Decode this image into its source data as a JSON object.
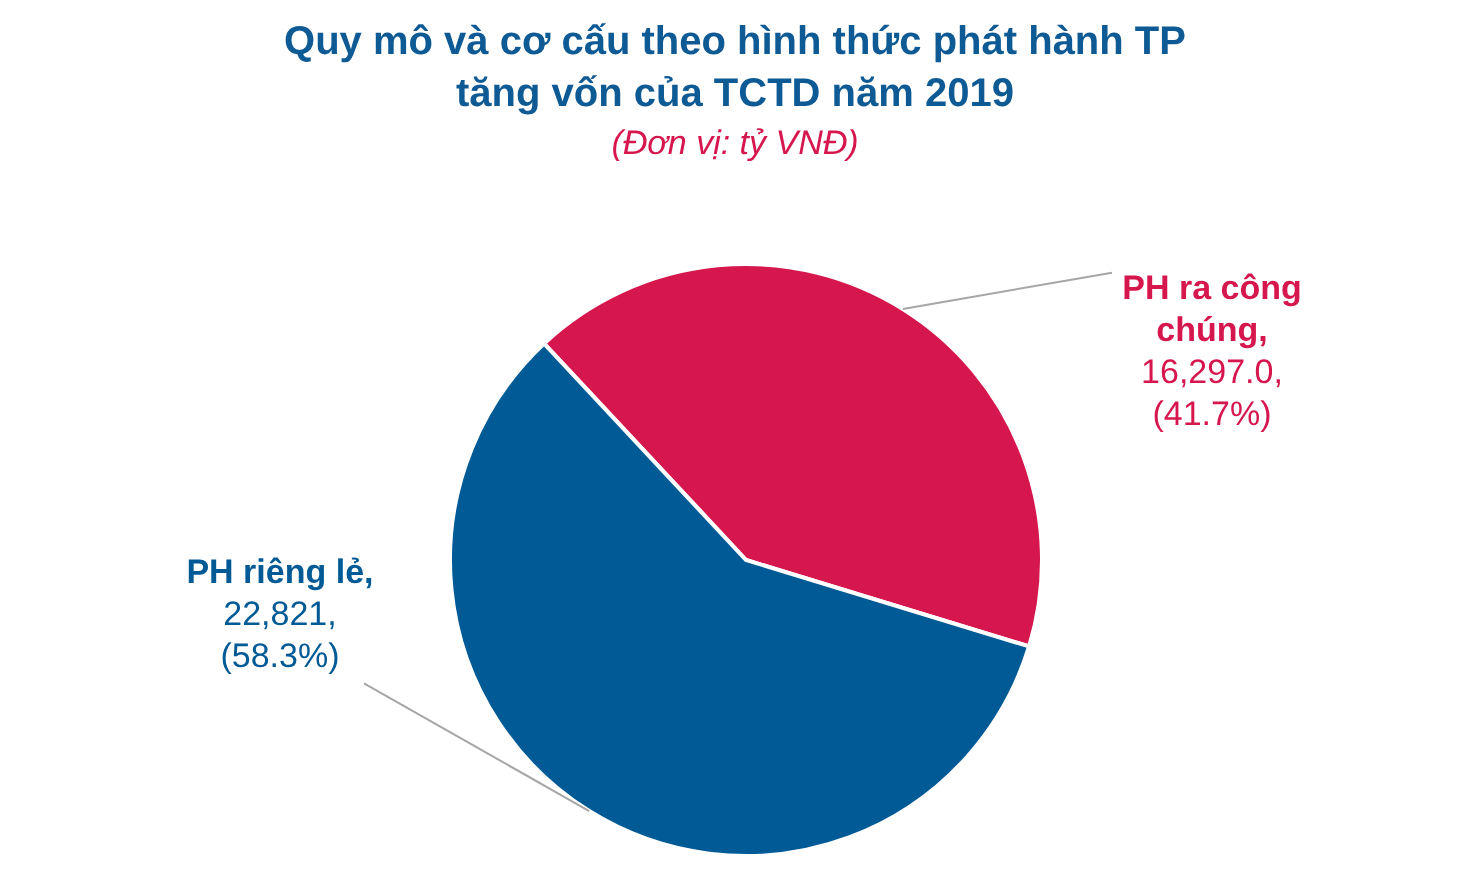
{
  "chart_data": {
    "type": "pie",
    "title": "Quy mô và cơ cấu theo hình thức phát hành TP tăng vốn của TCTD năm 2019",
    "subtitle": "(Đơn vị: tỷ VNĐ)",
    "categories": [
      "PH ra công chúng",
      "PH riêng lẻ"
    ],
    "values": [
      16297.0,
      22821
    ],
    "colors": [
      "#d6174d",
      "#005a96"
    ],
    "value_labels": [
      ", 16,297.0, (41.7%)",
      ", 22,821, (58.3%)"
    ]
  }
}
